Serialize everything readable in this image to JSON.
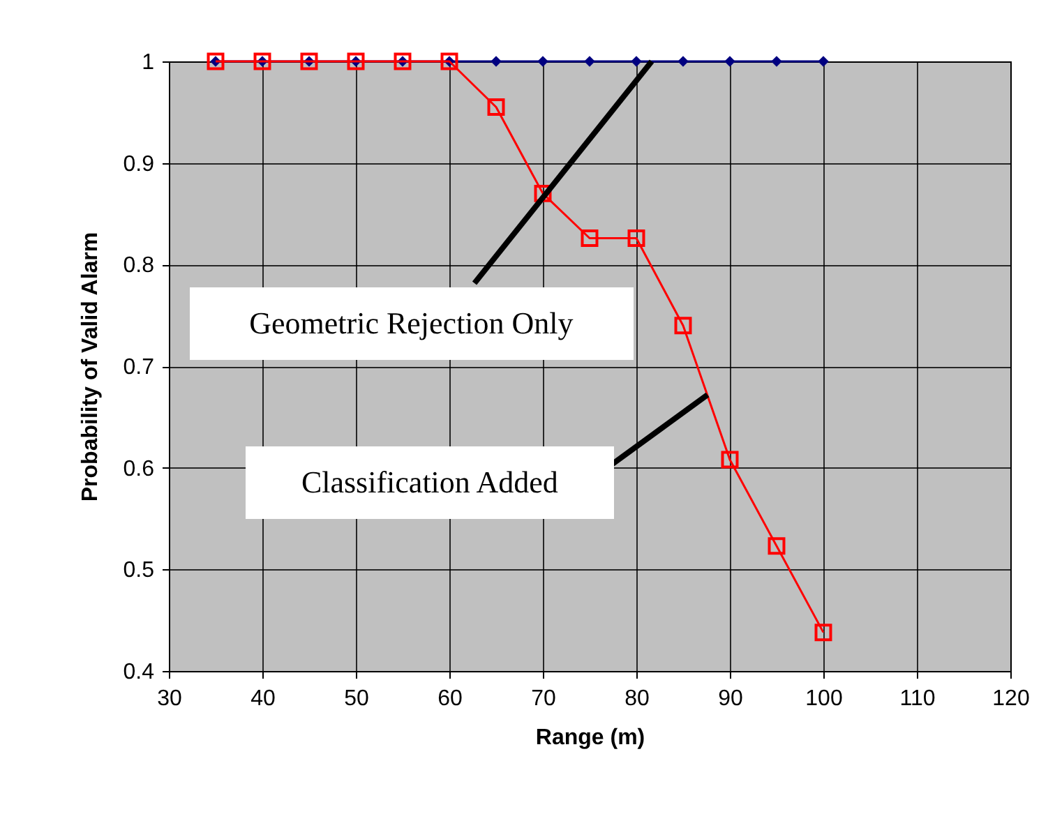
{
  "chart_data": {
    "type": "line",
    "xlabel": "Range (m)",
    "ylabel": "Probability of Valid Alarm",
    "x": [
      35,
      40,
      45,
      50,
      55,
      60,
      65,
      70,
      75,
      80,
      85,
      90,
      95,
      100
    ],
    "series": [
      {
        "color": "#000080",
        "marker": "diamond",
        "values": [
          1,
          1,
          1,
          1,
          1,
          1,
          1,
          1,
          1,
          1,
          1,
          1,
          1,
          1
        ]
      },
      {
        "color": "#ff0000",
        "marker": "square",
        "values": [
          1,
          1,
          1,
          1,
          1,
          1,
          0.955,
          0.87,
          0.826,
          0.826,
          0.74,
          0.608,
          0.523,
          0.438
        ]
      }
    ],
    "xlim": [
      30,
      120
    ],
    "xticks": [
      30,
      40,
      50,
      60,
      70,
      80,
      90,
      100,
      110,
      120
    ],
    "ylim": [
      0.4,
      1
    ],
    "yticks": [
      0.4,
      0.5,
      0.6,
      0.7,
      0.8,
      0.9,
      1
    ],
    "grid": true,
    "annotations": [
      {
        "text": "Geometric Rejection Only",
        "x": 81.6,
        "y": 1
      },
      {
        "text": "Classification Added",
        "x": 87.6,
        "y": 0.672
      }
    ]
  }
}
